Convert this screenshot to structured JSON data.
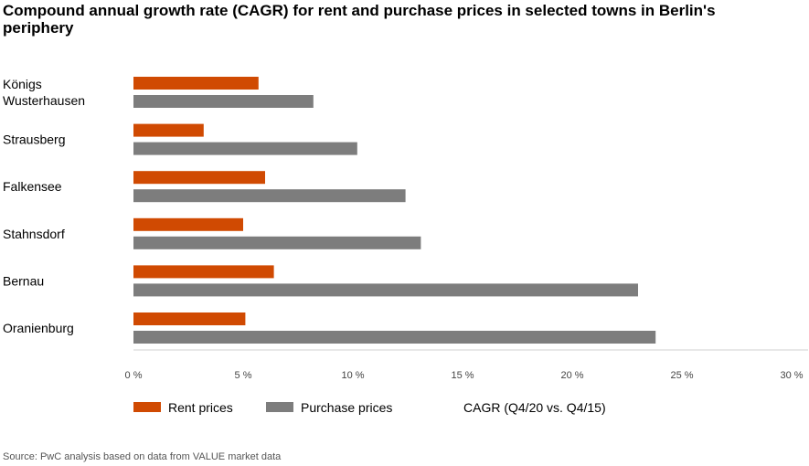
{
  "chart_data": {
    "type": "bar",
    "orientation": "horizontal",
    "title": "Compound annual growth rate (CAGR) for rent and purchase prices in selected towns in Berlin's periphery",
    "categories": [
      [
        "Königs",
        "Wusterhausen"
      ],
      [
        "Strausberg"
      ],
      [
        "Falkensee"
      ],
      [
        "Stahnsdorf"
      ],
      [
        "Bernau"
      ],
      [
        "Oranienburg"
      ]
    ],
    "series": [
      {
        "name": "Rent prices",
        "color": "#d04a02",
        "values": [
          5.7,
          3.2,
          6.0,
          5.0,
          6.4,
          5.1
        ]
      },
      {
        "name": "Purchase prices",
        "color": "#7d7d7d",
        "values": [
          8.2,
          10.2,
          12.4,
          13.1,
          23.0,
          23.8
        ]
      }
    ],
    "xlim": [
      0,
      30
    ],
    "ticks": [
      "0 %",
      "5 %",
      "10 %",
      "15 %",
      "20 %",
      "25 %",
      "30 %"
    ],
    "tick_values": [
      0,
      5,
      10,
      15,
      20,
      25,
      30
    ],
    "xlabel": "CAGR (Q4/20 vs. Q4/15)",
    "source": "Source: PwC analysis based on data from VALUE market data"
  }
}
